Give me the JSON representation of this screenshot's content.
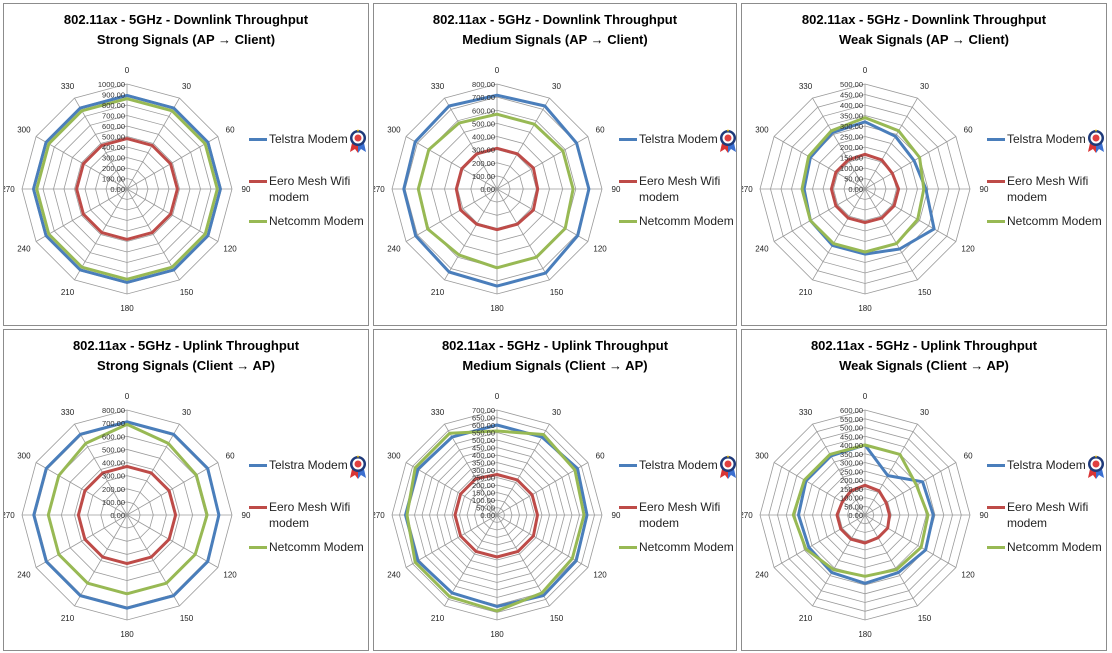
{
  "legend": {
    "items": [
      {
        "label": "Telstra Modem",
        "color": "#4a7ebb"
      },
      {
        "label": "Eero Mesh Wifi modem",
        "color": "#be4b48"
      },
      {
        "label": "Netcomm Modem",
        "color": "#98b954"
      }
    ],
    "badge_icon": "award-ribbon-icon"
  },
  "panels": [
    {
      "title_line1": "802.11ax - 5GHz - Downlink  Throughput",
      "title_line2": "Strong Signals (AP → Client)"
    },
    {
      "title_line1": "802.11ax - 5GHz - Downlink  Throughput",
      "title_line2": "Medium Signals (AP → Client)"
    },
    {
      "title_line1": "802.11ax - 5GHz - Downlink  Throughput",
      "title_line2": "Weak Signals (AP → Client)"
    },
    {
      "title_line1": "802.11ax - 5GHz - Uplink  Throughput",
      "title_line2": "Strong Signals (Client → AP)"
    },
    {
      "title_line1": "802.11ax - 5GHz - Uplink  Throughput",
      "title_line2": "Medium Signals (Client → AP)"
    },
    {
      "title_line1": "802.11ax - 5GHz - Uplink  Throughput",
      "title_line2": "Weak Signals (Client → AP)"
    }
  ],
  "chart_data": [
    {
      "type": "radar",
      "title": "802.11ax - 5GHz - Downlink  Throughput Strong Signals (AP → Client)",
      "categories": [
        "0",
        "30",
        "60",
        "90",
        "120",
        "150",
        "180",
        "210",
        "240",
        "270",
        "300",
        "330"
      ],
      "ylim": [
        0,
        1000
      ],
      "tick_labels": [
        "0.00",
        "100.00",
        "200.00",
        "300.00",
        "400.00",
        "500.00",
        "600.00",
        "700.00",
        "800.00",
        "900.00",
        "1000.00"
      ],
      "series": [
        {
          "name": "Telstra Modem",
          "values": [
            890,
            890,
            890,
            890,
            890,
            890,
            890,
            890,
            890,
            890,
            890,
            890
          ]
        },
        {
          "name": "Eero Mesh Wifi modem",
          "values": [
            480,
            480,
            480,
            480,
            480,
            480,
            480,
            480,
            480,
            480,
            480,
            480
          ]
        },
        {
          "name": "Netcomm Modem",
          "values": [
            860,
            860,
            860,
            860,
            860,
            860,
            860,
            860,
            860,
            860,
            860,
            860
          ]
        }
      ]
    },
    {
      "type": "radar",
      "title": "802.11ax - 5GHz - Downlink  Throughput Medium Signals (AP → Client)",
      "categories": [
        "0",
        "30",
        "60",
        "90",
        "120",
        "150",
        "180",
        "210",
        "240",
        "270",
        "300",
        "330"
      ],
      "ylim": [
        0,
        800
      ],
      "tick_labels": [
        "0.00",
        "100.00",
        "200.00",
        "300.00",
        "400.00",
        "500.00",
        "600.00",
        "700.00",
        "800.00"
      ],
      "series": [
        {
          "name": "Telstra Modem",
          "values": [
            715,
            730,
            700,
            700,
            710,
            740,
            740,
            730,
            715,
            710,
            720,
            730
          ]
        },
        {
          "name": "Eero Mesh Wifi modem",
          "values": [
            310,
            310,
            320,
            310,
            320,
            310,
            310,
            310,
            320,
            310,
            310,
            310
          ]
        },
        {
          "name": "Netcomm Modem",
          "values": [
            570,
            570,
            580,
            580,
            600,
            600,
            600,
            580,
            610,
            600,
            600,
            580
          ]
        }
      ]
    },
    {
      "type": "radar",
      "title": "802.11ax - 5GHz - Downlink  Throughput Weak Signals (AP → Client)",
      "categories": [
        "0",
        "30",
        "60",
        "90",
        "120",
        "150",
        "180",
        "210",
        "240",
        "270",
        "300",
        "330"
      ],
      "ylim": [
        0,
        500
      ],
      "tick_labels": [
        "0.00",
        "50.00",
        "100.00",
        "150.00",
        "200.00",
        "250.00",
        "300.00",
        "350.00",
        "400.00",
        "450.00",
        "500.00"
      ],
      "series": [
        {
          "name": "Telstra Modem",
          "values": [
            320,
            290,
            270,
            290,
            380,
            330,
            310,
            310,
            300,
            290,
            300,
            310
          ]
        },
        {
          "name": "Eero Mesh Wifi modem",
          "values": [
            165,
            160,
            150,
            160,
            160,
            160,
            160,
            160,
            160,
            160,
            160,
            160
          ]
        },
        {
          "name": "Netcomm Modem",
          "values": [
            340,
            320,
            300,
            280,
            290,
            300,
            300,
            300,
            300,
            300,
            310,
            320
          ]
        }
      ]
    },
    {
      "type": "radar",
      "title": "802.11ax - 5GHz - Uplink  Throughput Strong Signals (Client → AP)",
      "categories": [
        "0",
        "30",
        "60",
        "90",
        "120",
        "150",
        "180",
        "210",
        "240",
        "270",
        "300",
        "330"
      ],
      "ylim": [
        0,
        800
      ],
      "tick_labels": [
        "0.00",
        "100.00",
        "200.00",
        "300.00",
        "400.00",
        "500.00",
        "600.00",
        "700.00",
        "800.00"
      ],
      "series": [
        {
          "name": "Telstra Modem",
          "values": [
            710,
            710,
            710,
            700,
            710,
            710,
            710,
            710,
            710,
            710,
            710,
            710
          ]
        },
        {
          "name": "Eero Mesh Wifi modem",
          "values": [
            370,
            370,
            370,
            370,
            370,
            370,
            370,
            370,
            370,
            370,
            370,
            370
          ]
        },
        {
          "name": "Netcomm Modem",
          "values": [
            690,
            630,
            610,
            610,
            600,
            600,
            600,
            600,
            600,
            600,
            600,
            630
          ]
        }
      ]
    },
    {
      "type": "radar",
      "title": "802.11ax - 5GHz - Uplink  Throughput Medium Signals (Client → AP)",
      "categories": [
        "0",
        "30",
        "60",
        "90",
        "120",
        "150",
        "180",
        "210",
        "240",
        "270",
        "300",
        "330"
      ],
      "ylim": [
        0,
        700
      ],
      "tick_labels": [
        "0.00",
        "50.00",
        "100.00",
        "150.00",
        "200.00",
        "250.00",
        "300.00",
        "350.00",
        "400.00",
        "450.00",
        "500.00",
        "550.00",
        "600.00",
        "650.00",
        "700.00"
      ],
      "series": [
        {
          "name": "Telstra Modem",
          "values": [
            600,
            600,
            620,
            600,
            610,
            620,
            610,
            600,
            610,
            610,
            610,
            600
          ]
        },
        {
          "name": "Eero Mesh Wifi modem",
          "values": [
            270,
            270,
            270,
            270,
            280,
            280,
            280,
            280,
            280,
            280,
            280,
            280
          ]
        },
        {
          "name": "Netcomm Modem",
          "values": [
            560,
            620,
            600,
            580,
            580,
            600,
            640,
            630,
            630,
            600,
            630,
            630
          ]
        }
      ]
    },
    {
      "type": "radar",
      "title": "802.11ax - 5GHz - Uplink  Throughput Weak Signals (Client → AP)",
      "categories": [
        "0",
        "30",
        "60",
        "90",
        "120",
        "150",
        "180",
        "210",
        "240",
        "270",
        "300",
        "330"
      ],
      "ylim": [
        0,
        600
      ],
      "tick_labels": [
        "0.00",
        "50.00",
        "100.00",
        "150.00",
        "200.00",
        "250.00",
        "300.00",
        "350.00",
        "400.00",
        "450.00",
        "500.00",
        "550.00",
        "600.00"
      ],
      "series": [
        {
          "name": "Telstra Modem",
          "values": [
            400,
            260,
            380,
            390,
            400,
            380,
            390,
            380,
            370,
            380,
            390,
            390
          ]
        },
        {
          "name": "Eero Mesh Wifi modem",
          "values": [
            170,
            160,
            140,
            140,
            150,
            150,
            160,
            160,
            160,
            160,
            150,
            160
          ]
        },
        {
          "name": "Netcomm Modem",
          "values": [
            400,
            400,
            340,
            360,
            370,
            360,
            350,
            360,
            390,
            410,
            400,
            400
          ]
        }
      ]
    }
  ]
}
